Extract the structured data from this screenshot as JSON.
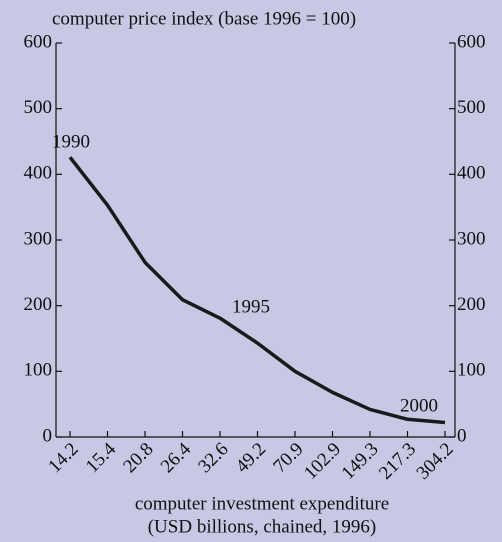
{
  "chart_data": {
    "type": "line",
    "title": "computer price index (base 1996 = 100)",
    "x_label": [
      "computer investment expenditure",
      "(USD billions, chained, 1996)"
    ],
    "categories": [
      "14.2",
      "15.4",
      "20.8",
      "26.4",
      "32.6",
      "49.2",
      "70.9",
      "102.9",
      "149.3",
      "217.3",
      "304.2"
    ],
    "series": [
      {
        "name": "computer price index",
        "color": "#1a1a1a",
        "values": [
          426,
          353,
          266,
          209,
          181,
          143,
          100,
          68,
          42,
          27,
          22
        ]
      }
    ],
    "annotations": [
      "1990",
      "1995",
      "2000"
    ],
    "ylim": [
      0,
      600
    ],
    "yticks": [
      0,
      100,
      200,
      300,
      400,
      500,
      600
    ],
    "y2lim": [
      0,
      600
    ],
    "y2ticks": [
      0,
      100,
      200,
      300,
      400,
      500,
      600
    ]
  }
}
